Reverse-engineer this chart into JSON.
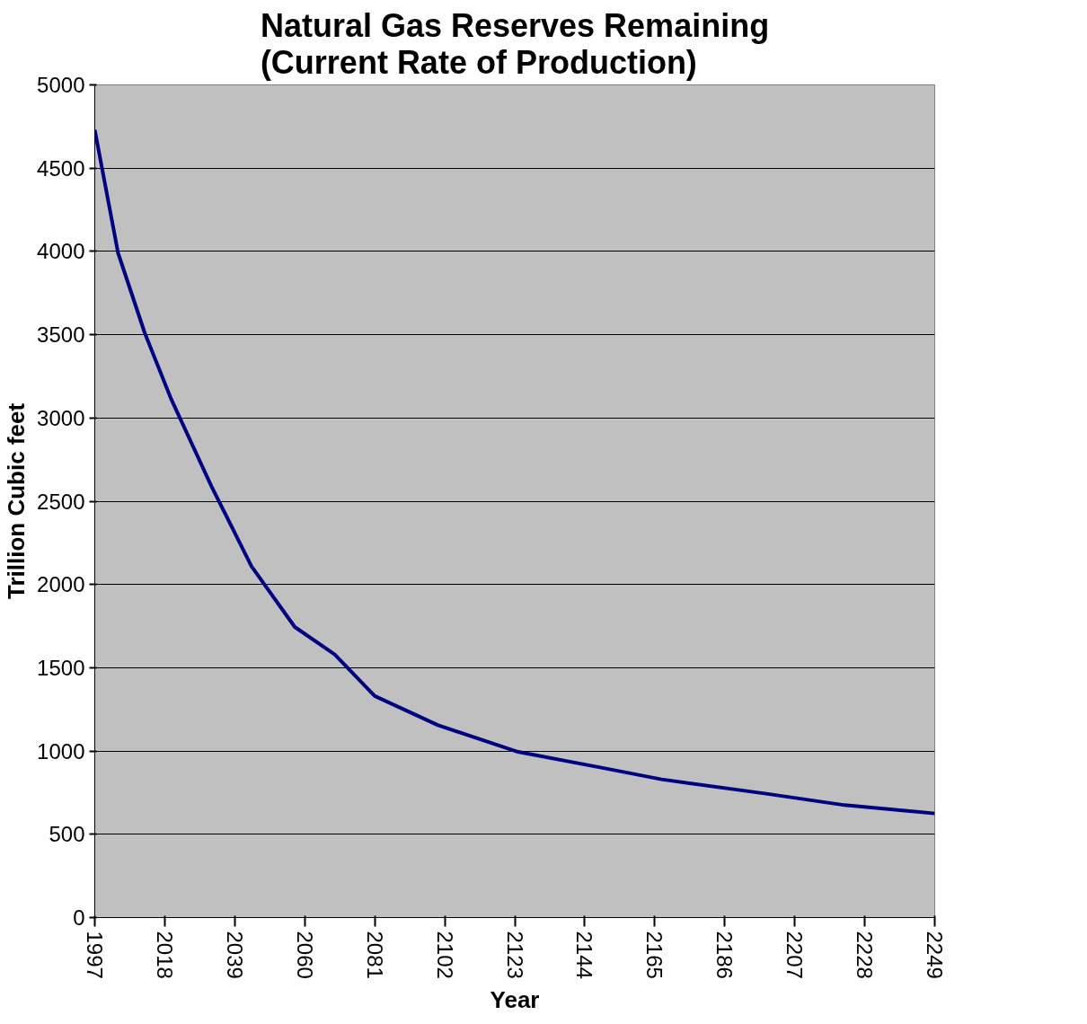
{
  "chart_data": {
    "type": "line",
    "title": "Natural Gas Reserves Remaining\n(Current Rate of Production)",
    "xlabel": "Year",
    "ylabel": "Trillion Cubic feet",
    "x": [
      1997,
      2004,
      2012,
      2020,
      2032,
      2044,
      2057,
      2069,
      2081,
      2100,
      2124,
      2149,
      2167,
      2198,
      2222,
      2249
    ],
    "series": [
      {
        "color": "#000080",
        "values": [
          4730,
          3990,
          3510,
          3110,
          2590,
          2110,
          1745,
          1580,
          1330,
          1155,
          995,
          900,
          830,
          745,
          675,
          625
        ]
      }
    ],
    "xlim": [
      1997,
      2249
    ],
    "xticks": [
      1997,
      2018,
      2039,
      2060,
      2081,
      2102,
      2123,
      2144,
      2165,
      2186,
      2207,
      2228,
      2249
    ],
    "ylim": [
      0,
      5000
    ],
    "yticks": [
      0,
      500,
      1000,
      1500,
      2000,
      2500,
      3000,
      3500,
      4000,
      4500,
      5000
    ],
    "grid": "y",
    "marker": "none",
    "line_style": "solid"
  }
}
